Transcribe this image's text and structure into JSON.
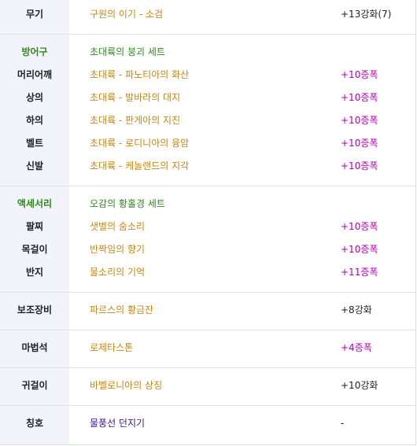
{
  "colors": {
    "category": "#2f8a1d",
    "item": "#c98510",
    "title": "#3d1490",
    "star": "#b000b0",
    "label_bg": "#f3f4fb"
  },
  "weapon": {
    "label": "무기",
    "name": "구원의 이기 - 소검",
    "value": "+13강화(7)"
  },
  "armor": {
    "label": "방어구",
    "set": "초대륙의 붕괴 세트",
    "items": [
      {
        "label": "머리어깨",
        "name": "초대륙 - 파노티아의 화산",
        "value": "+10증폭"
      },
      {
        "label": "상의",
        "name": "초대륙 - 발바라의 대지",
        "value": "+10증폭"
      },
      {
        "label": "하의",
        "name": "초대륙 - 판게아의 지진",
        "value": "+10증폭"
      },
      {
        "label": "벨트",
        "name": "초대륙 - 로디니아의 융암",
        "value": "+10증폭"
      },
      {
        "label": "신발",
        "name": "초대륙 - 케놀랜드의 지각",
        "value": "+10증폭"
      }
    ]
  },
  "accessory": {
    "label": "액세서리",
    "set": "오감의 황홀경 세트",
    "items": [
      {
        "label": "팔찌",
        "name": "샛별의 숨소리",
        "value": "+10증폭"
      },
      {
        "label": "목걸이",
        "name": "반짝임의 향기",
        "value": "+10증폭"
      },
      {
        "label": "반지",
        "name": "물소리의 기억",
        "value": "+11증폭"
      }
    ]
  },
  "sub": {
    "label": "보조장비",
    "name": "파르스의 황금잔",
    "value": "+8강화"
  },
  "magic": {
    "label": "마법석",
    "name": "로제타스톤",
    "value": "+4증폭"
  },
  "earring": {
    "label": "귀걸이",
    "name": "바벨로니아의 상징",
    "value": "+10강화"
  },
  "title": {
    "label": "칭호",
    "name": "물풍선 던지기",
    "value": "-"
  }
}
